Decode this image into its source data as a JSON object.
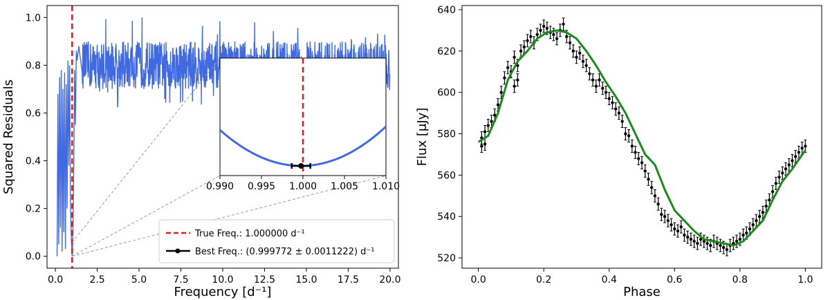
{
  "chart_data": [
    {
      "type": "line",
      "xlabel": "Frequency [d⁻¹]",
      "ylabel": "Squared Residuals",
      "xlim": [
        -0.5,
        20.5
      ],
      "ylim": [
        -0.05,
        1.05
      ],
      "xticks": [
        "0.0",
        "2.5",
        "5.0",
        "7.5",
        "10.0",
        "12.5",
        "15.0",
        "17.5",
        "20.0"
      ],
      "yticks": [
        "0.0",
        "0.2",
        "0.4",
        "0.6",
        "0.8",
        "1.0"
      ],
      "grid": false,
      "legend_position": "lower right",
      "series": [
        {
          "name": "periodogram",
          "color": "#4169E1"
        },
        {
          "name": "True Freq.: 1.000000 d⁻¹",
          "x": 1.0,
          "color": "#e31a1c",
          "style": "dashed"
        },
        {
          "name": "Best Freq.: (0.999772 ± 0.0011222) d⁻¹",
          "x": 0.999772,
          "y": 0.0,
          "xerr": 0.0011222,
          "color": "#000000"
        }
      ],
      "periodogram_points": [
        [
          0.1,
          0.0
        ],
        [
          0.15,
          0.68
        ],
        [
          0.2,
          0.05
        ],
        [
          0.25,
          0.75
        ],
        [
          0.3,
          0.12
        ],
        [
          0.35,
          0.78
        ],
        [
          0.4,
          0.02
        ],
        [
          0.45,
          0.7
        ],
        [
          0.5,
          0.1
        ],
        [
          0.55,
          0.77
        ],
        [
          0.6,
          0.03
        ],
        [
          0.65,
          0.72
        ],
        [
          0.7,
          0.2
        ],
        [
          0.75,
          0.82
        ],
        [
          0.8,
          0.38
        ],
        [
          0.85,
          0.8
        ],
        [
          0.9,
          0.22
        ],
        [
          0.95,
          0.08
        ],
        [
          1.0,
          0.0
        ],
        [
          1.05,
          0.1
        ],
        [
          1.1,
          0.4
        ],
        [
          1.15,
          0.78
        ],
        [
          1.2,
          0.55
        ],
        [
          1.25,
          0.86
        ],
        [
          1.3,
          0.82
        ],
        [
          1.4,
          0.88
        ],
        [
          1.6,
          0.77
        ]
      ],
      "inset": {
        "xlim": [
          0.99,
          1.01
        ],
        "xticks": [
          "0.990",
          "0.995",
          "1.000",
          "1.005",
          "1.010"
        ],
        "zoom_x": [
          0.99,
          1.01
        ],
        "zoom_y": [
          0.0,
          0.0
        ]
      }
    },
    {
      "type": "scatter",
      "xlabel": "Phase",
      "ylabel": "Flux [μJy]",
      "xlim": [
        -0.05,
        1.05
      ],
      "ylim": [
        515,
        642
      ],
      "xticks": [
        "0.0",
        "0.2",
        "0.4",
        "0.6",
        "0.8",
        "1.0"
      ],
      "yticks": [
        "520",
        "540",
        "560",
        "580",
        "600",
        "620",
        "640"
      ],
      "grid": false,
      "series": [
        {
          "name": "model",
          "color": "#1a8a1a",
          "x": [
            0.0,
            0.03,
            0.06,
            0.09,
            0.12,
            0.15,
            0.18,
            0.21,
            0.24,
            0.27,
            0.3,
            0.33,
            0.36,
            0.39,
            0.42,
            0.45,
            0.48,
            0.51,
            0.54,
            0.57,
            0.6,
            0.63,
            0.66,
            0.69,
            0.72,
            0.75,
            0.78,
            0.81,
            0.84,
            0.87,
            0.9,
            0.93,
            0.96,
            1.0
          ],
          "y": [
            576,
            579,
            590,
            606,
            615,
            620,
            626,
            629,
            630,
            629,
            626,
            620,
            613,
            605,
            598,
            590,
            580,
            570,
            565,
            553,
            543,
            538,
            533,
            529,
            528,
            527,
            526,
            528,
            533,
            538,
            548,
            557,
            563,
            572
          ]
        },
        {
          "name": "observations",
          "color": "#000000",
          "x": [
            0.01,
            0.01,
            0.02,
            0.02,
            0.03,
            0.04,
            0.05,
            0.06,
            0.07,
            0.08,
            0.09,
            0.1,
            0.11,
            0.11,
            0.12,
            0.12,
            0.13,
            0.14,
            0.15,
            0.16,
            0.17,
            0.18,
            0.19,
            0.2,
            0.21,
            0.22,
            0.23,
            0.24,
            0.25,
            0.26,
            0.27,
            0.28,
            0.29,
            0.3,
            0.31,
            0.32,
            0.33,
            0.34,
            0.35,
            0.36,
            0.37,
            0.38,
            0.39,
            0.4,
            0.41,
            0.42,
            0.43,
            0.44,
            0.45,
            0.46,
            0.47,
            0.48,
            0.49,
            0.5,
            0.51,
            0.52,
            0.53,
            0.54,
            0.55,
            0.56,
            0.57,
            0.58,
            0.59,
            0.6,
            0.61,
            0.62,
            0.63,
            0.64,
            0.65,
            0.66,
            0.67,
            0.68,
            0.69,
            0.7,
            0.71,
            0.72,
            0.73,
            0.74,
            0.75,
            0.76,
            0.77,
            0.78,
            0.79,
            0.8,
            0.81,
            0.82,
            0.83,
            0.84,
            0.85,
            0.86,
            0.87,
            0.88,
            0.89,
            0.9,
            0.91,
            0.92,
            0.93,
            0.94,
            0.95,
            0.96,
            0.97,
            0.98,
            0.99,
            1.0
          ],
          "y": [
            578,
            574,
            575,
            581,
            584,
            586,
            589,
            594,
            600,
            607,
            612,
            610,
            617,
            603,
            606,
            613,
            620,
            622,
            625,
            627,
            624,
            628,
            630,
            632,
            631,
            629,
            628,
            626,
            630,
            633,
            627,
            624,
            620,
            617,
            619,
            615,
            613,
            609,
            606,
            603,
            606,
            602,
            600,
            597,
            595,
            592,
            590,
            586,
            580,
            579,
            574,
            571,
            568,
            566,
            562,
            558,
            554,
            550,
            546,
            541,
            540,
            538,
            536,
            534,
            533,
            535,
            531,
            530,
            529,
            528,
            527,
            529,
            528,
            527,
            526,
            528,
            527,
            526,
            525,
            524,
            526,
            527,
            528,
            529,
            531,
            532,
            534,
            536,
            538,
            540,
            542,
            545,
            548,
            552,
            556,
            559,
            561,
            563,
            565,
            567,
            569,
            571,
            573,
            574
          ],
          "yerr": 3
        }
      ]
    }
  ]
}
